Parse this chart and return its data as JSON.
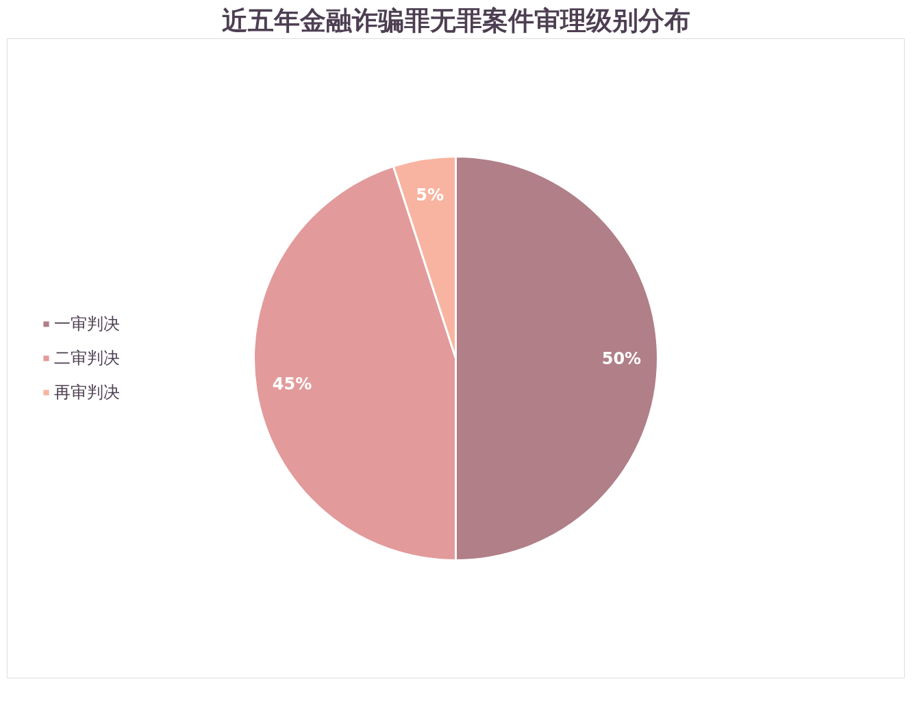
{
  "chart_data": {
    "type": "pie",
    "title": "近五年金融诈骗罪无罪案件审理级别分布",
    "categories": [
      "一审判决",
      "二审判决",
      "再审判决"
    ],
    "values": [
      50,
      45,
      5
    ],
    "colors": [
      "#b07f88",
      "#e29a9b",
      "#f8b4a0"
    ],
    "value_labels": [
      "50%",
      "45%",
      "5%"
    ],
    "legend": "left"
  }
}
